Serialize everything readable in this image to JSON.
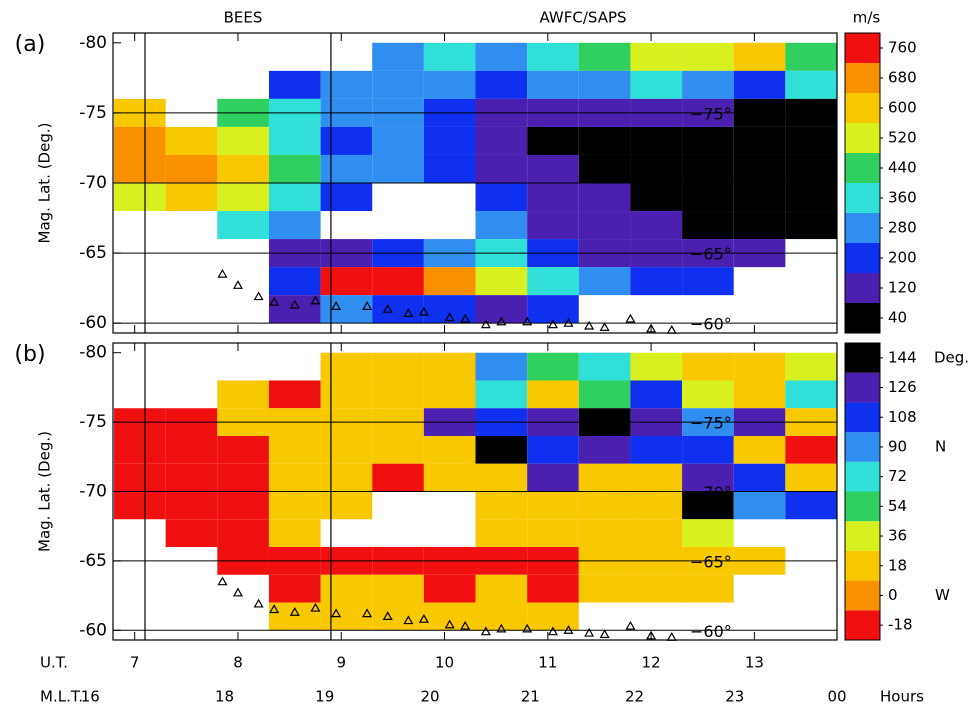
{
  "chart_data": [
    {
      "type": "heatmap",
      "panel_label": "(a)",
      "annotations": [
        "BEES",
        "AWFC/SAPS"
      ],
      "ylabel": "Mag. Lat. (Deg.)",
      "xlim": [
        6.79,
        13.8
      ],
      "ylim": [
        -59.3,
        -80.7
      ],
      "yticks": [
        -80,
        -75,
        -70,
        -65,
        -60
      ],
      "vlines": [
        7.1,
        8.9
      ],
      "lat_labels": [
        {
          "value": -75,
          "label": "−75°"
        },
        {
          "value": -70,
          "label": "−70°"
        },
        {
          "value": -65,
          "label": "−65°"
        },
        {
          "value": -60,
          "label": "−60°"
        }
      ],
      "cells": {
        "x_edges": [
          6.8,
          7.3,
          7.8,
          8.3,
          8.8,
          9.3,
          9.8,
          10.3,
          10.8,
          11.3,
          11.8,
          12.3,
          12.8,
          13.3,
          13.8
        ],
        "y_edges": [
          -80,
          -78,
          -76,
          -74,
          -72,
          -70,
          -68,
          -66,
          -64,
          -62,
          -60
        ],
        "values": [
          [
            null,
            null,
            null,
            null,
            null,
            280,
            360,
            300,
            360,
            400,
            500,
            520,
            560,
            440
          ],
          [
            null,
            null,
            null,
            200,
            280,
            280,
            300,
            200,
            280,
            300,
            360,
            300,
            200,
            360
          ],
          [
            600,
            null,
            440,
            360,
            280,
            300,
            200,
            120,
            120,
            120,
            120,
            120,
            40,
            40
          ],
          [
            680,
            600,
            520,
            360,
            200,
            280,
            200,
            120,
            40,
            40,
            40,
            40,
            40,
            40
          ],
          [
            680,
            680,
            600,
            440,
            280,
            280,
            200,
            120,
            120,
            40,
            40,
            40,
            40,
            40
          ],
          [
            520,
            600,
            520,
            360,
            200,
            null,
            null,
            200,
            120,
            120,
            40,
            40,
            40,
            40
          ],
          [
            null,
            null,
            360,
            280,
            null,
            null,
            null,
            280,
            120,
            120,
            120,
            40,
            40,
            40
          ],
          [
            null,
            null,
            null,
            120,
            120,
            200,
            280,
            360,
            200,
            120,
            120,
            120,
            120,
            null
          ],
          [
            null,
            null,
            null,
            200,
            760,
            760,
            680,
            520,
            360,
            280,
            200,
            200,
            null,
            null
          ],
          [
            null,
            null,
            null,
            120,
            280,
            200,
            200,
            120,
            200,
            null,
            null,
            null,
            null,
            null
          ]
        ]
      },
      "boundary": {
        "x": [
          7.85,
          8.0,
          8.2,
          8.35,
          8.55,
          8.75,
          8.95,
          9.25,
          9.45,
          9.65,
          9.8,
          10.05,
          10.2,
          10.4,
          10.55,
          10.8,
          11.05,
          11.2,
          11.4,
          11.55,
          11.8,
          12.0,
          12.2
        ],
        "y": [
          -63.5,
          -62.7,
          -61.9,
          -61.5,
          -61.3,
          -61.6,
          -61.2,
          -61.2,
          -61.0,
          -60.7,
          -60.8,
          -60.4,
          -60.3,
          -59.9,
          -60.1,
          -60.1,
          -59.9,
          -60.0,
          -59.8,
          -59.7,
          -60.3,
          -59.6,
          -59.5
        ]
      },
      "colorbar": {
        "unit": "m/s",
        "lim": [
          0,
          800
        ],
        "ticks": [
          40,
          120,
          200,
          280,
          360,
          440,
          520,
          600,
          680,
          760
        ],
        "colors": [
          "#000000",
          "#4b1fb0",
          "#1030f0",
          "#2f8ef0",
          "#30e0d8",
          "#30d060",
          "#d8f020",
          "#f8c800",
          "#f89000",
          "#f01010"
        ]
      }
    },
    {
      "type": "heatmap",
      "panel_label": "(b)",
      "ylabel": "Mag. Lat. (Deg.)",
      "xlim": [
        6.79,
        13.8
      ],
      "ylim": [
        -59.3,
        -80.7
      ],
      "yticks": [
        -80,
        -75,
        -70,
        -65,
        -60
      ],
      "vlines": [
        7.1,
        8.9
      ],
      "lat_labels": [
        {
          "value": -75,
          "label": "−75°"
        },
        {
          "value": -70,
          "label": "−70°"
        },
        {
          "value": -65,
          "label": "−65°"
        },
        {
          "value": -60,
          "label": "−60°"
        }
      ],
      "cells": {
        "x_edges": [
          6.8,
          7.3,
          7.8,
          8.3,
          8.8,
          9.3,
          9.8,
          10.3,
          10.8,
          11.3,
          11.8,
          12.3,
          12.8,
          13.3,
          13.8
        ],
        "y_edges": [
          -80,
          -78,
          -76,
          -74,
          -72,
          -70,
          -68,
          -66,
          -64,
          -62,
          -60
        ],
        "values": [
          [
            null,
            null,
            null,
            null,
            18,
            18,
            18,
            90,
            54,
            72,
            36,
            18,
            18,
            36
          ],
          [
            null,
            null,
            18,
            -18,
            18,
            18,
            18,
            72,
            18,
            54,
            108,
            36,
            18,
            72
          ],
          [
            -18,
            -18,
            18,
            18,
            18,
            18,
            126,
            108,
            126,
            144,
            126,
            90,
            126,
            18
          ],
          [
            -18,
            -18,
            -18,
            18,
            18,
            18,
            18,
            144,
            108,
            126,
            108,
            108,
            18,
            -18
          ],
          [
            -18,
            -18,
            -18,
            18,
            18,
            -18,
            18,
            18,
            126,
            18,
            18,
            126,
            108,
            18
          ],
          [
            -18,
            -18,
            -18,
            18,
            18,
            null,
            null,
            18,
            18,
            18,
            18,
            144,
            90,
            108
          ],
          [
            null,
            -18,
            -18,
            18,
            null,
            null,
            null,
            18,
            18,
            18,
            18,
            36,
            null,
            null
          ],
          [
            null,
            null,
            -18,
            -18,
            -18,
            -18,
            -18,
            -18,
            -18,
            18,
            18,
            18,
            18,
            null
          ],
          [
            null,
            null,
            null,
            -18,
            18,
            18,
            -18,
            18,
            -18,
            18,
            18,
            18,
            null,
            null
          ],
          [
            null,
            null,
            null,
            18,
            18,
            18,
            18,
            18,
            18,
            null,
            null,
            null,
            null,
            null
          ]
        ]
      },
      "boundary": {
        "x": [
          7.85,
          8.0,
          8.2,
          8.35,
          8.55,
          8.75,
          8.95,
          9.25,
          9.45,
          9.65,
          9.8,
          10.05,
          10.2,
          10.4,
          10.55,
          10.8,
          11.05,
          11.2,
          11.4,
          11.55,
          11.8,
          12.0,
          12.2
        ],
        "y": [
          -63.5,
          -62.7,
          -61.9,
          -61.5,
          -61.3,
          -61.6,
          -61.2,
          -61.2,
          -61.0,
          -60.7,
          -60.8,
          -60.4,
          -60.3,
          -59.9,
          -60.1,
          -60.1,
          -59.9,
          -60.0,
          -59.8,
          -59.7,
          -60.3,
          -59.6,
          -59.5
        ]
      },
      "colorbar": {
        "unit": "Deg.",
        "lim": [
          -27,
          153
        ],
        "ticks": [
          -18,
          0,
          18,
          36,
          54,
          72,
          90,
          108,
          126,
          144
        ],
        "colors": [
          "#f01010",
          "#f89000",
          "#f8c800",
          "#d8f020",
          "#30d060",
          "#30e0d8",
          "#2f8ef0",
          "#1030f0",
          "#4b1fb0",
          "#000000"
        ],
        "direction_labels": [
          {
            "value": 90,
            "label": "N"
          },
          {
            "value": 0,
            "label": "W"
          }
        ]
      },
      "xlabel": "U.T.",
      "xticks": [
        7,
        8,
        9,
        10,
        11,
        12,
        13
      ],
      "mlt_label": "M.L.T.",
      "mlt_ticks": [
        {
          "value": 6.57,
          "label": "16"
        },
        {
          "value": 7.87,
          "label": "18"
        },
        {
          "value": 8.84,
          "label": "19"
        },
        {
          "value": 9.86,
          "label": "20"
        },
        {
          "value": 10.83,
          "label": "21"
        },
        {
          "value": 11.84,
          "label": "22"
        },
        {
          "value": 12.81,
          "label": "23"
        },
        {
          "value": 13.8,
          "label": "00"
        }
      ],
      "x_unit": "Hours"
    }
  ]
}
